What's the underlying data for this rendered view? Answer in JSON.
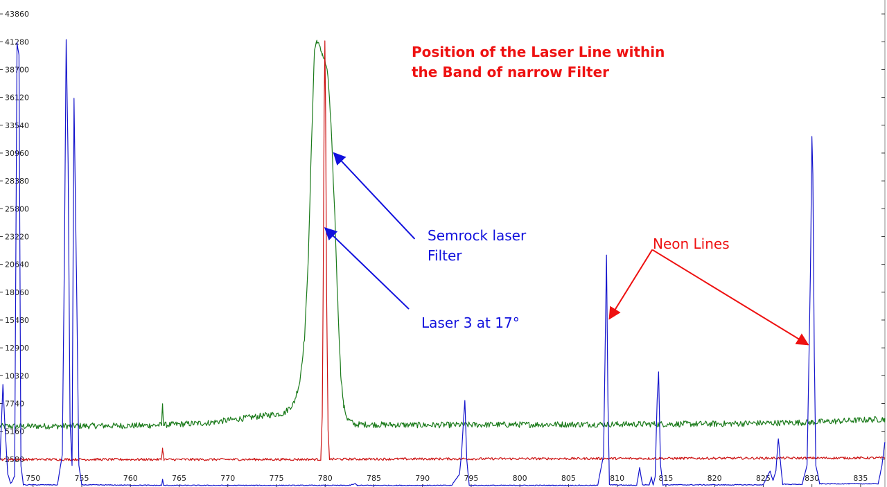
{
  "chart_data": {
    "type": "line",
    "title_lines": [
      "Position of the Laser Line within",
      "the Band of narrow Filter"
    ],
    "xlabel": "",
    "ylabel": "",
    "xlim": [
      746.6,
      837.5
    ],
    "ylim": [
      0,
      45150
    ],
    "grid": false,
    "y_ticks": [
      2580,
      5160,
      7740,
      10320,
      12900,
      15480,
      18060,
      20640,
      23220,
      25800,
      28380,
      30960,
      33540,
      36120,
      38700,
      41280,
      43860
    ],
    "x_ticks": [
      750,
      755,
      760,
      765,
      770,
      775,
      780,
      785,
      790,
      795,
      800,
      805,
      810,
      815,
      820,
      825,
      830,
      835
    ],
    "series": [
      {
        "color": "#1a7a1a",
        "baseline": 5740,
        "noise": 280,
        "points": [
          [
            746.6,
            5620
          ],
          [
            762.0,
            5700
          ],
          [
            763.2,
            5750
          ],
          [
            763.3,
            7850
          ],
          [
            763.4,
            5750
          ],
          [
            768.0,
            5950
          ],
          [
            771.0,
            6300
          ],
          [
            774.0,
            6650
          ],
          [
            775.8,
            6850
          ],
          [
            776.8,
            7800
          ],
          [
            777.4,
            9800
          ],
          [
            777.9,
            14000
          ],
          [
            778.3,
            22000
          ],
          [
            778.6,
            32000
          ],
          [
            778.9,
            40500
          ],
          [
            779.15,
            41400
          ],
          [
            779.4,
            40800
          ],
          [
            779.7,
            40200
          ],
          [
            780.0,
            39400
          ],
          [
            780.3,
            38000
          ],
          [
            780.6,
            33500
          ],
          [
            781.0,
            25000
          ],
          [
            781.3,
            17000
          ],
          [
            781.6,
            10500
          ],
          [
            781.9,
            7500
          ],
          [
            782.3,
            6300
          ],
          [
            783.0,
            5800
          ],
          [
            790.0,
            5740
          ],
          [
            800.0,
            5790
          ],
          [
            810.0,
            5820
          ],
          [
            820.0,
            5850
          ],
          [
            830.0,
            6000
          ],
          [
            837.5,
            6300
          ]
        ]
      },
      {
        "color": "#cc1111",
        "baseline": 2500,
        "noise": 110,
        "points": [
          [
            746.6,
            2560
          ],
          [
            763.15,
            2550
          ],
          [
            763.3,
            3550
          ],
          [
            763.45,
            2550
          ],
          [
            779.55,
            2560
          ],
          [
            779.7,
            6500
          ],
          [
            779.8,
            19000
          ],
          [
            779.9,
            34800
          ],
          [
            779.97,
            41300
          ],
          [
            780.05,
            34500
          ],
          [
            780.15,
            18000
          ],
          [
            780.3,
            5200
          ],
          [
            780.45,
            2580
          ],
          [
            837.5,
            2700
          ]
        ]
      },
      {
        "color": "#1515cc",
        "baseline": 150,
        "noise": 40,
        "points": [
          [
            746.6,
            2500
          ],
          [
            746.9,
            9500
          ],
          [
            747.15,
            5000
          ],
          [
            747.4,
            1200
          ],
          [
            747.7,
            300
          ],
          [
            748.1,
            1000
          ],
          [
            748.35,
            41200
          ],
          [
            748.55,
            40000
          ],
          [
            748.75,
            2000
          ],
          [
            749.0,
            200
          ],
          [
            752.5,
            200
          ],
          [
            753.0,
            3000
          ],
          [
            753.2,
            20000
          ],
          [
            753.4,
            41500
          ],
          [
            753.6,
            30000
          ],
          [
            753.8,
            6000
          ],
          [
            754.0,
            2000
          ],
          [
            754.2,
            36000
          ],
          [
            754.45,
            20000
          ],
          [
            754.7,
            2000
          ],
          [
            755.0,
            200
          ],
          [
            763.2,
            150
          ],
          [
            763.3,
            700
          ],
          [
            763.4,
            150
          ],
          [
            782.5,
            150
          ],
          [
            783.1,
            300
          ],
          [
            783.3,
            150
          ],
          [
            793.0,
            150
          ],
          [
            793.8,
            1200
          ],
          [
            794.0,
            3000
          ],
          [
            794.2,
            6000
          ],
          [
            794.35,
            8000
          ],
          [
            794.55,
            2500
          ],
          [
            794.8,
            150
          ],
          [
            808.0,
            150
          ],
          [
            808.6,
            3000
          ],
          [
            808.75,
            12000
          ],
          [
            808.9,
            21500
          ],
          [
            809.05,
            8000
          ],
          [
            809.2,
            200
          ],
          [
            812.0,
            150
          ],
          [
            812.3,
            1800
          ],
          [
            812.6,
            200
          ],
          [
            813.3,
            200
          ],
          [
            813.5,
            900
          ],
          [
            813.7,
            200
          ],
          [
            813.9,
            1000
          ],
          [
            814.1,
            8000
          ],
          [
            814.25,
            10700
          ],
          [
            814.45,
            2000
          ],
          [
            814.7,
            200
          ],
          [
            825.0,
            200
          ],
          [
            825.4,
            900
          ],
          [
            825.7,
            1500
          ],
          [
            826.0,
            600
          ],
          [
            826.3,
            1500
          ],
          [
            826.55,
            4500
          ],
          [
            826.75,
            2500
          ],
          [
            827.0,
            250
          ],
          [
            829.0,
            250
          ],
          [
            829.5,
            2000
          ],
          [
            829.7,
            12000
          ],
          [
            829.85,
            20000
          ],
          [
            830.0,
            32500
          ],
          [
            830.1,
            29000
          ],
          [
            830.25,
            12000
          ],
          [
            830.4,
            2000
          ],
          [
            830.8,
            300
          ],
          [
            836.8,
            300
          ],
          [
            837.2,
            2000
          ],
          [
            837.5,
            4200
          ]
        ]
      }
    ],
    "annotations": [
      {
        "text_lines": [
          "Semrock laser",
          "Filter"
        ],
        "color": "#1111dd",
        "target": [
          780.9,
          30960
        ],
        "from": [
          789.2,
          23000
        ]
      },
      {
        "text_lines": [
          "Laser 3 at 17°"
        ],
        "color": "#1111dd",
        "target": [
          780.0,
          24000
        ],
        "from": [
          788.6,
          16500
        ]
      },
      {
        "text_lines": [
          "Neon Lines"
        ],
        "color": "#ee1111",
        "target": [
          809.2,
          15600
        ],
        "from": [
          813.6,
          22000
        ]
      },
      {
        "text_lines": [],
        "color": "#ee1111",
        "target": [
          829.6,
          13200
        ],
        "from": [
          813.6,
          22000
        ]
      }
    ]
  }
}
